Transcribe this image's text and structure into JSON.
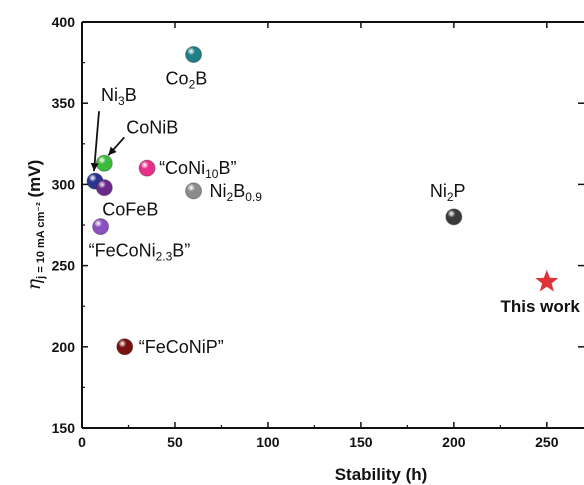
{
  "chart_data": {
    "type": "scatter",
    "title": "",
    "xlabel": "Stability (h)",
    "ylabel": {
      "main": "η",
      "sub": "j = 10 mA cm⁻²",
      "unit": " (mV)"
    },
    "xlim": [
      0,
      270
    ],
    "ylim": [
      150,
      400
    ],
    "xticks": [
      0,
      50,
      100,
      150,
      200,
      250
    ],
    "yticks": [
      150,
      200,
      250,
      300,
      350,
      400
    ],
    "grid": false,
    "points": [
      {
        "id": "co2b",
        "x": 60,
        "y": 380,
        "color": "#1f7f86",
        "marker": "sphere",
        "label": [
          {
            "t": "Co"
          },
          {
            "t": "2",
            "sub": true
          },
          {
            "t": "B"
          }
        ]
      },
      {
        "id": "ni3b",
        "x": 7,
        "y": 302,
        "color": "#2a3590",
        "marker": "sphere",
        "label": [
          {
            "t": "Ni"
          },
          {
            "t": "3",
            "sub": true
          },
          {
            "t": "B"
          }
        ]
      },
      {
        "id": "conib",
        "x": 12,
        "y": 313,
        "color": "#3dbb3d",
        "marker": "sphere",
        "label": [
          {
            "t": "CoNiB"
          }
        ]
      },
      {
        "id": "coni10b",
        "x": 35,
        "y": 310,
        "color": "#e8308a",
        "marker": "sphere",
        "label": [
          {
            "t": "“CoNi"
          },
          {
            "t": "10",
            "sub": true
          },
          {
            "t": "B”"
          }
        ]
      },
      {
        "id": "ni2b09",
        "x": 60,
        "y": 296,
        "color": "#8c8c8c",
        "marker": "sphere",
        "label": [
          {
            "t": "Ni"
          },
          {
            "t": "2",
            "sub": true
          },
          {
            "t": "B"
          },
          {
            "t": "0.9",
            "sub": true
          }
        ]
      },
      {
        "id": "cofeb",
        "x": 12,
        "y": 298,
        "color": "#6b2a8a",
        "marker": "sphere",
        "label": [
          {
            "t": "CoFeB"
          }
        ]
      },
      {
        "id": "feconi23b",
        "x": 10,
        "y": 274,
        "color": "#8a4fc0",
        "marker": "sphere",
        "label": [
          {
            "t": "“FeCoNi"
          },
          {
            "t": "2.3",
            "sub": true
          },
          {
            "t": "B”"
          }
        ]
      },
      {
        "id": "ni2p",
        "x": 200,
        "y": 280,
        "color": "#3a3a3a",
        "marker": "sphere",
        "label": [
          {
            "t": "Ni"
          },
          {
            "t": "2",
            "sub": true
          },
          {
            "t": "P"
          }
        ]
      },
      {
        "id": "feconip",
        "x": 23,
        "y": 200,
        "color": "#7a1010",
        "marker": "sphere",
        "label": [
          {
            "t": "“FeCoNiP”"
          }
        ]
      },
      {
        "id": "thiswork",
        "x": 250,
        "y": 240,
        "color": "#e0303a",
        "marker": "star",
        "label": [
          {
            "t": "This work"
          }
        ]
      }
    ]
  }
}
